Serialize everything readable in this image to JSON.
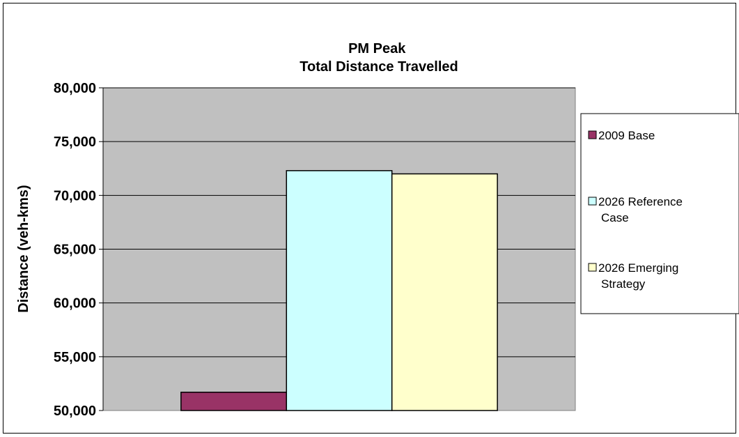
{
  "chart_data": {
    "type": "bar",
    "title": "PM Peak",
    "subtitle": "Total Distance Travelled",
    "xlabel": "",
    "ylabel": "Distance (veh-kms)",
    "ylim": [
      50000,
      80000
    ],
    "yticks": [
      50000,
      55000,
      60000,
      65000,
      70000,
      75000,
      80000
    ],
    "ytick_labels": [
      "50,000",
      "55,000",
      "60,000",
      "65,000",
      "70,000",
      "75,000",
      "80,000"
    ],
    "grid": true,
    "legend_position": "right",
    "plot_background": "#C0C0C0",
    "categories": [
      ""
    ],
    "series": [
      {
        "name": "2009 Base",
        "legend_lines": [
          "2009 Base"
        ],
        "values": [
          51700
        ],
        "color": "#993366"
      },
      {
        "name": "2026 Reference Case",
        "legend_lines": [
          "2026 Reference",
          "Case"
        ],
        "values": [
          72300
        ],
        "color": "#CCFFFF"
      },
      {
        "name": "2026 Emerging Strategy",
        "legend_lines": [
          "2026 Emerging",
          "Strategy"
        ],
        "values": [
          72000
        ],
        "color": "#FFFFCC"
      }
    ]
  }
}
